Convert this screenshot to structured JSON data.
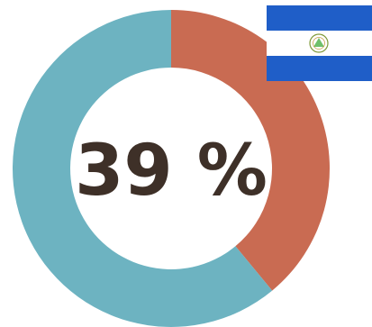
{
  "chart_data": {
    "type": "pie",
    "variant": "donut",
    "slices": [
      {
        "value": 39,
        "color": "#c96b52"
      },
      {
        "value": 61,
        "color": "#6db3c1"
      }
    ],
    "center_label": "39 %",
    "legend": "none"
  },
  "flag": {
    "icon": "nicaragua-flag-icon",
    "colors": {
      "blue": "#1f5ec8",
      "white": "#ffffff",
      "emblem": "#7f9a3a"
    }
  }
}
